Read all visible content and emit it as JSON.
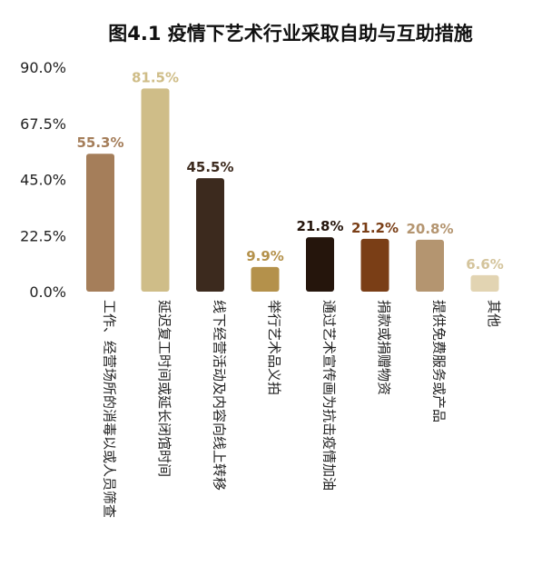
{
  "chart_data": {
    "type": "bar",
    "title": "图4.1  疫情下艺术行业采取自助与互助措施",
    "xlabel": "",
    "ylabel": "",
    "ylim": [
      0,
      90
    ],
    "yticks": [
      "0.0%",
      "22.5%",
      "45.0%",
      "67.5%",
      "90.0%"
    ],
    "grid": false,
    "legend": "none",
    "categories": [
      "工作、经营场所的消毒以或人员筛查",
      "延迟复工时间或延长闭馆时间",
      "线下经营活动及内容向线上转移",
      "举行艺术品义拍",
      "通过艺术宣传画为抗击疫情加油",
      "捐款或捐赠物资",
      "提供免费服务或产品",
      "其他"
    ],
    "values": [
      55.3,
      81.5,
      45.5,
      9.9,
      21.8,
      21.2,
      20.8,
      6.6
    ],
    "value_labels": [
      "55.3%",
      "81.5%",
      "45.5%",
      "9.9%",
      "21.8%",
      "21.2%",
      "20.8%",
      "6.6%"
    ],
    "bar_colors": [
      "#A57E5A",
      "#CFBD88",
      "#3C2A1E",
      "#B4914B",
      "#25150C",
      "#7A3E16",
      "#B49570",
      "#E2D4B2"
    ],
    "label_colors": [
      "#A57E5A",
      "#CFBD88",
      "#3C2A1E",
      "#B4914B",
      "#25150C",
      "#7A3E16",
      "#B49570",
      "#D4C49C"
    ]
  }
}
